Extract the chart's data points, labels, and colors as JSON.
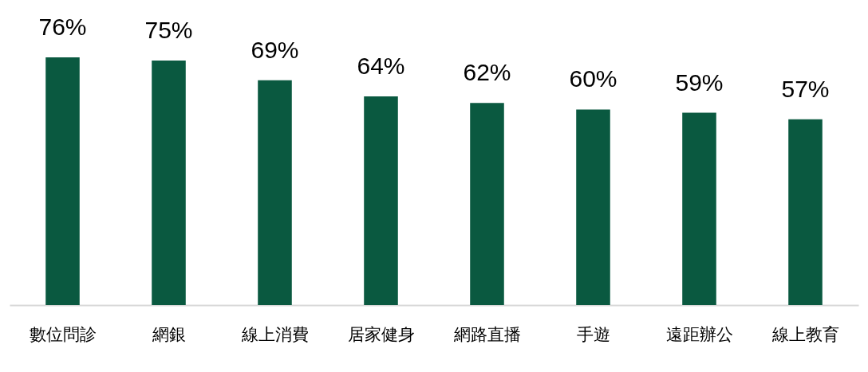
{
  "chart_data": {
    "type": "bar",
    "categories": [
      "數位問診",
      "網銀",
      "線上消費",
      "居家健身",
      "網路直播",
      "手遊",
      "遠距辦公",
      "線上教育"
    ],
    "values": [
      76,
      75,
      69,
      64,
      62,
      60,
      59,
      57
    ],
    "value_labels": [
      "76%",
      "75%",
      "69%",
      "64%",
      "62%",
      "60%",
      "59%",
      "57%"
    ],
    "color": "#0a5940"
  }
}
